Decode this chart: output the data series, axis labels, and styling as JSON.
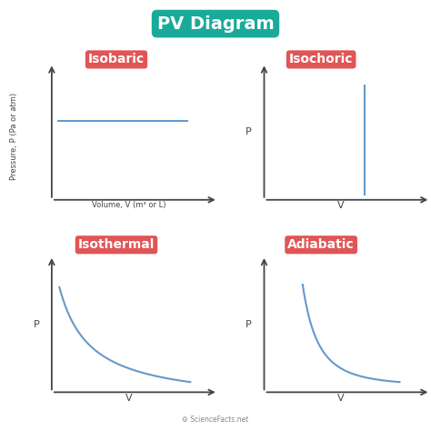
{
  "title": "PV Diagram",
  "title_bg_color": "#1aaa99",
  "title_text_color": "white",
  "title_fontsize": 14,
  "label_bg_color": "#e05555",
  "label_text_color": "white",
  "label_fontsize": 10,
  "line_color": "#6699cc",
  "subplot_labels": [
    "Isobaric",
    "Isochoric",
    "Isothermal",
    "Adiabatic"
  ],
  "ax1_xlabel": "Volume, V (m³ or L)",
  "ax1_ylabel": "Pressure, P (Pa or atm)",
  "ax2_xlabel": "V",
  "ax2_ylabel": "P",
  "ax3_xlabel": "V",
  "ax3_ylabel": "P",
  "ax4_xlabel": "V",
  "ax4_ylabel": "P",
  "bg_color": "white",
  "footer_text": "⚙ ScienceFacts.net",
  "axis_color": "#444444"
}
